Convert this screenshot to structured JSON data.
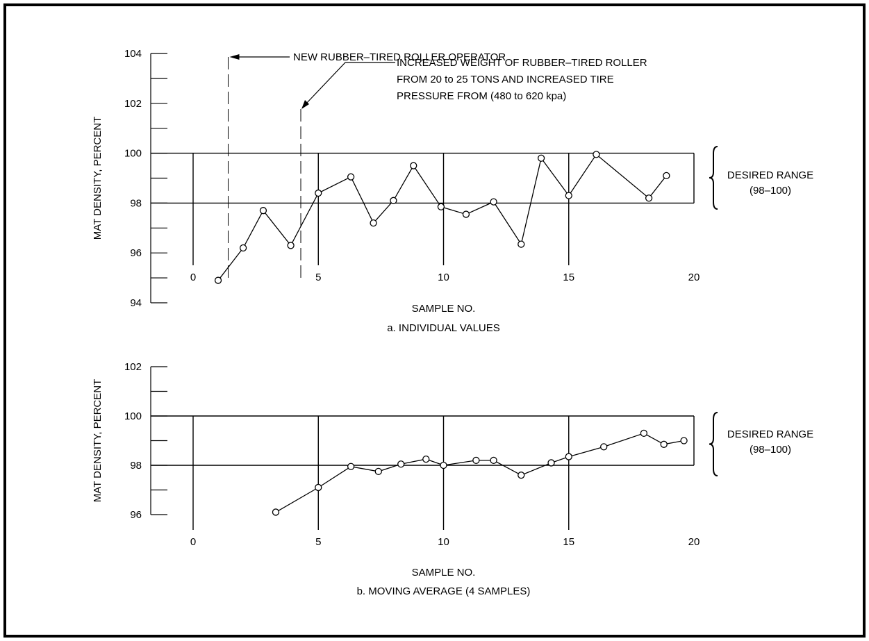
{
  "chart_data": [
    {
      "type": "line",
      "caption": "a. INDIVIDUAL VALUES",
      "xlabel": "SAMPLE NO.",
      "ylabel": "MAT DENSITY, PERCENT",
      "xlim": [
        0,
        20
      ],
      "ylim": [
        94,
        104
      ],
      "x_ticks": [
        0,
        5,
        10,
        15,
        20
      ],
      "y_ticks": [
        94,
        96,
        98,
        100,
        102,
        104
      ],
      "y_minor_ticks": [
        95,
        97,
        99,
        101,
        103
      ],
      "grid": true,
      "desired_range": {
        "low": 98,
        "high": 100,
        "label_1": "DESIRED RANGE",
        "label_2": "(98–100)"
      },
      "series": [
        {
          "x": [
            1,
            2,
            2.8,
            3.9,
            5,
            6.3,
            7.2,
            8,
            8.8,
            9.9,
            10.9,
            12,
            13.1,
            13.9,
            15,
            16.1,
            18.2,
            18.9
          ],
          "y": [
            94.9,
            96.2,
            97.7,
            96.3,
            98.4,
            99.05,
            97.2,
            98.1,
            99.5,
            97.85,
            97.55,
            98.05,
            96.35,
            99.8,
            98.3,
            99.95,
            98.2,
            99.1
          ]
        }
      ],
      "annotations": {
        "operator_label": "NEW RUBBER–TIRED ROLLER OPERATOR",
        "operator_x": 1.4,
        "weight_label_1": "INCREASED WEIGHT OF RUBBER–TIRED ROLLER",
        "weight_label_2": "FROM 20 to 25 TONS AND INCREASED TIRE",
        "weight_label_3": "PRESSURE FROM (480 to 620 kpa)",
        "weight_x": 4.3
      }
    },
    {
      "type": "line",
      "caption": "b. MOVING AVERAGE (4 SAMPLES)",
      "xlabel": "SAMPLE NO.",
      "ylabel": "MAT DENSITY, PERCENT",
      "xlim": [
        0,
        20
      ],
      "ylim": [
        96,
        102
      ],
      "x_ticks": [
        0,
        5,
        10,
        15,
        20
      ],
      "y_ticks": [
        96,
        98,
        100,
        102
      ],
      "y_minor_ticks": [
        97,
        99,
        101
      ],
      "grid": true,
      "desired_range": {
        "low": 98,
        "high": 100,
        "label_1": "DESIRED RANGE",
        "label_2": "(98–100)"
      },
      "series": [
        {
          "x": [
            3.3,
            5,
            6.3,
            7.4,
            8.3,
            9.3,
            10,
            11.3,
            12,
            13.1,
            14.3,
            15,
            16.4,
            18,
            18.8,
            19.6
          ],
          "y": [
            96.1,
            97.1,
            97.95,
            97.75,
            98.05,
            98.25,
            98.0,
            98.2,
            98.2,
            97.6,
            98.1,
            98.35,
            98.75,
            99.3,
            98.85,
            99.0
          ]
        }
      ]
    }
  ]
}
